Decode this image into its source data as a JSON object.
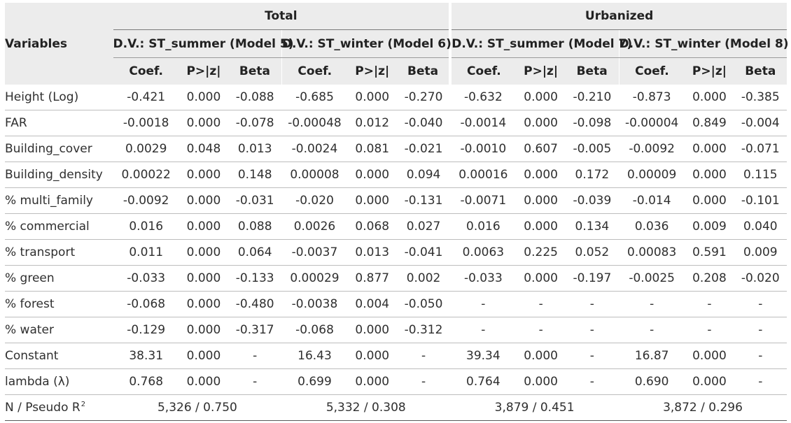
{
  "header": {
    "variables": "Variables",
    "groups": [
      "Total",
      "Urbanized"
    ],
    "models": [
      "D.V.: ST_summer (Model 5)",
      "D.V.: ST_winter (Model 6)",
      "D.V.: ST_summer (Model 7)",
      "D.V.: ST_winter (Model 8)"
    ],
    "stats": [
      "Coef.",
      "P>|z|",
      "Beta"
    ]
  },
  "rows": [
    {
      "label": "Height (Log)",
      "values": [
        "-0.421",
        "0.000",
        "-0.088",
        "-0.685",
        "0.000",
        "-0.270",
        "-0.632",
        "0.000",
        "-0.210",
        "-0.873",
        "0.000",
        "-0.385"
      ]
    },
    {
      "label": "FAR",
      "values": [
        "-0.0018",
        "0.000",
        "-0.078",
        "-0.00048",
        "0.012",
        "-0.040",
        "-0.0014",
        "0.000",
        "-0.098",
        "-0.00004",
        "0.849",
        "-0.004"
      ]
    },
    {
      "label": "Building_cover",
      "values": [
        "0.0029",
        "0.048",
        "0.013",
        "-0.0024",
        "0.081",
        "-0.021",
        "-0.0010",
        "0.607",
        "-0.005",
        "-0.0092",
        "0.000",
        "-0.071"
      ]
    },
    {
      "label": "Building_density",
      "values": [
        "0.00022",
        "0.000",
        "0.148",
        "0.00008",
        "0.000",
        "0.094",
        "0.00016",
        "0.000",
        "0.172",
        "0.00009",
        "0.000",
        "0.115"
      ]
    },
    {
      "label": "% multi_family",
      "values": [
        "-0.0092",
        "0.000",
        "-0.031",
        "-0.020",
        "0.000",
        "-0.131",
        "-0.0071",
        "0.000",
        "-0.039",
        "-0.014",
        "0.000",
        "-0.101"
      ]
    },
    {
      "label": "% commercial",
      "values": [
        "0.016",
        "0.000",
        "0.088",
        "0.0026",
        "0.068",
        "0.027",
        "0.016",
        "0.000",
        "0.134",
        "0.036",
        "0.009",
        "0.040"
      ]
    },
    {
      "label": "% transport",
      "values": [
        "0.011",
        "0.000",
        "0.064",
        "-0.0037",
        "0.013",
        "-0.041",
        "0.0063",
        "0.225",
        "0.052",
        "0.00083",
        "0.591",
        "0.009"
      ]
    },
    {
      "label": "% green",
      "values": [
        "-0.033",
        "0.000",
        "-0.133",
        "0.00029",
        "0.877",
        "0.002",
        "-0.033",
        "0.000",
        "-0.197",
        "-0.0025",
        "0.208",
        "-0.020"
      ]
    },
    {
      "label": "% forest",
      "values": [
        "-0.068",
        "0.000",
        "-0.480",
        "-0.0038",
        "0.004",
        "-0.050",
        "-",
        "-",
        "-",
        "-",
        "-",
        "-"
      ]
    },
    {
      "label": "% water",
      "values": [
        "-0.129",
        "0.000",
        "-0.317",
        "-0.068",
        "0.000",
        "-0.312",
        "-",
        "-",
        "-",
        "-",
        "-",
        "-"
      ]
    },
    {
      "label": "Constant",
      "values": [
        "38.31",
        "0.000",
        "-",
        "16.43",
        "0.000",
        "-",
        "39.34",
        "0.000",
        "-",
        "16.87",
        "0.000",
        "-"
      ]
    },
    {
      "label": "lambda (λ)",
      "values": [
        "0.768",
        "0.000",
        "-",
        "0.699",
        "0.000",
        "-",
        "0.764",
        "0.000",
        "-",
        "0.690",
        "0.000",
        "-"
      ]
    }
  ],
  "fit": {
    "label": "N / Pseudo R",
    "label_sup": "2",
    "values": [
      "5,326 / 0.750",
      "5,332 / 0.308",
      "3,879 / 0.451",
      "3,872 / 0.296"
    ]
  }
}
